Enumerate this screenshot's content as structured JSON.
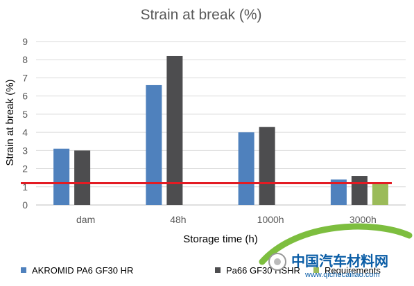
{
  "chart_data": {
    "type": "bar",
    "title": "Strain at break (%)",
    "xlabel": "Storage time (h)",
    "ylabel": "Strain at break (%)",
    "ylim": [
      0,
      9
    ],
    "yticks": [
      0,
      1,
      2,
      3,
      4,
      5,
      6,
      7,
      8,
      9
    ],
    "categories": [
      "dam",
      "48h",
      "1000h",
      "3000h"
    ],
    "series": [
      {
        "name": "AKROMID PA6 GF30 HR",
        "color": "#4F81BD",
        "values": [
          3.1,
          6.6,
          4.0,
          1.4
        ]
      },
      {
        "name": "Pa66 GF30 HSHR",
        "color": "#4D4D4F",
        "values": [
          3.0,
          8.2,
          4.3,
          1.6
        ]
      },
      {
        "name": "Requirements",
        "color": "#9BBB59",
        "values": [
          null,
          null,
          null,
          1.2
        ]
      }
    ],
    "reference_line": {
      "value": 1.2,
      "color": "#E31B23"
    },
    "grid": true,
    "legend_position": "bottom",
    "watermark": "中国汽车材料网 www.qichecailiao.com"
  }
}
